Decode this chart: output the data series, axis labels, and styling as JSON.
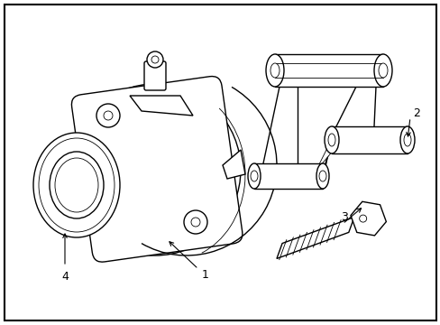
{
  "background_color": "#ffffff",
  "line_color": "#000000",
  "lw": 1.0,
  "tlw": 0.6,
  "fig_width": 4.89,
  "fig_height": 3.6
}
